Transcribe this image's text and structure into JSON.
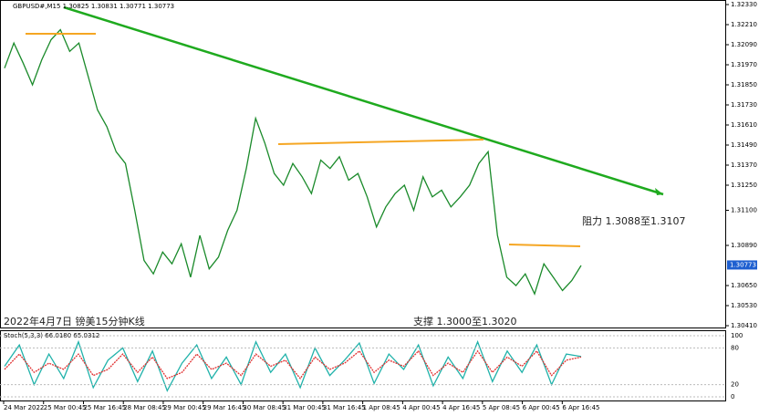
{
  "chart_data": {
    "type": "line",
    "title": "GBPUSD#,M15  1.30825 1.30831 1.30771 1.30773",
    "ylim": [
      1.3041,
      1.3233
    ],
    "yticks": [
      {
        "value": 1.3233,
        "label": "1.32330"
      },
      {
        "value": 1.3221,
        "label": "1.32210"
      },
      {
        "value": 1.3209,
        "label": "1.32090"
      },
      {
        "value": 1.3197,
        "label": "1.31970"
      },
      {
        "value": 1.3185,
        "label": "1.31850"
      },
      {
        "value": 1.3173,
        "label": "1.31730"
      },
      {
        "value": 1.3161,
        "label": "1.31610"
      },
      {
        "value": 1.3149,
        "label": "1.31490"
      },
      {
        "value": 1.3137,
        "label": "1.31370"
      },
      {
        "value": 1.3125,
        "label": "1.31250"
      },
      {
        "value": 1.311,
        "label": "1.31100"
      },
      {
        "value": 1.3089,
        "label": "1.30890"
      },
      {
        "value": 1.3065,
        "label": "1.30650"
      },
      {
        "value": 1.3053,
        "label": "1.30530"
      },
      {
        "value": 1.3041,
        "label": "1.30410"
      }
    ],
    "current_price": {
      "value": 1.30773,
      "label": "1.30773"
    },
    "x_labels": [
      "24 Mar 2022",
      "25 Mar 00:45",
      "25 Mar 16:45",
      "28 Mar 08:45",
      "29 Mar 00:45",
      "29 Mar 16:45",
      "30 Mar 08:45",
      "31 Mar 00:45",
      "31 Mar 16:45",
      "1 Apr 08:45",
      "4 Apr 00:45",
      "4 Apr 16:45",
      "5 Apr 08:45",
      "6 Apr 00:45",
      "6 Apr 16:45"
    ],
    "series": [
      {
        "color": "#1a8a2a",
        "values": [
          1.3195,
          1.321,
          1.3198,
          1.3185,
          1.32,
          1.3212,
          1.3218,
          1.3205,
          1.321,
          1.319,
          1.317,
          1.316,
          1.3145,
          1.3138,
          1.311,
          1.308,
          1.3072,
          1.3085,
          1.3078,
          1.309,
          1.307,
          1.3095,
          1.3075,
          1.3082,
          1.3098,
          1.311,
          1.3135,
          1.3165,
          1.315,
          1.3132,
          1.3125,
          1.3138,
          1.313,
          1.312,
          1.314,
          1.3135,
          1.3142,
          1.3128,
          1.3132,
          1.3118,
          1.31,
          1.3112,
          1.312,
          1.3125,
          1.311,
          1.313,
          1.3118,
          1.3122,
          1.3112,
          1.3118,
          1.3125,
          1.3138,
          1.3145,
          1.3095,
          1.307,
          1.3065,
          1.3072,
          1.306,
          1.3078,
          1.307,
          1.3062,
          1.3068,
          1.3077
        ]
      }
    ],
    "annotations": [
      "阻力 1.3088至1.3107",
      "支撑 1.3000至1.3020",
      "2022年4月7日 镑美15分钟K线"
    ],
    "indicator": {
      "label": "Stoch(5,3,3) 66.0180 65.0312",
      "ylim": [
        0,
        100
      ],
      "yticks": [
        100,
        80,
        20,
        0
      ],
      "series": [
        {
          "color": "#20b2aa",
          "values": [
            50,
            85,
            20,
            70,
            30,
            90,
            15,
            60,
            80,
            25,
            75,
            10,
            55,
            85,
            30,
            65,
            20,
            90,
            40,
            70,
            15,
            80,
            35,
            60,
            88,
            22,
            70,
            45,
            85,
            18,
            65,
            30,
            90,
            25,
            75,
            40,
            85,
            20,
            70,
            66
          ]
        },
        {
          "color": "#e03030",
          "values": [
            45,
            70,
            40,
            55,
            45,
            70,
            35,
            45,
            70,
            40,
            65,
            30,
            40,
            70,
            45,
            55,
            35,
            70,
            50,
            60,
            30,
            65,
            45,
            55,
            75,
            40,
            60,
            50,
            75,
            35,
            55,
            40,
            75,
            40,
            65,
            50,
            75,
            35,
            60,
            65
          ]
        }
      ]
    }
  }
}
